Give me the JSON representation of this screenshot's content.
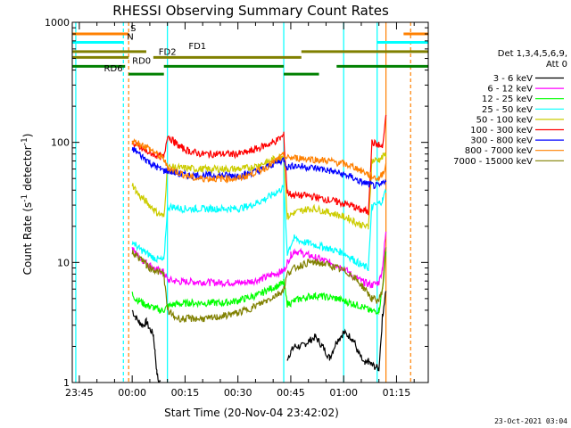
{
  "chart_data": {
    "type": "line",
    "title": "RHESSI Observing Summary Count Rates",
    "xlabel": "Start Time (20-Nov-04 23:42:02)",
    "ylabel_main": "Count Rate (s",
    "ylabel_sup1": "-1",
    "ylabel_mid": " detector",
    "ylabel_sup2": "-1",
    "ylabel_end": ")",
    "y_scale": "log",
    "ylim": [
      1,
      1000
    ],
    "xlim": [
      -17,
      84
    ],
    "x_units": "minutes after 00:00 on 21-Nov-04",
    "y_ticks": [
      {
        "value": 1,
        "label": "1"
      },
      {
        "value": 10,
        "label": "10"
      },
      {
        "value": 100,
        "label": "100"
      },
      {
        "value": 1000,
        "label": "1000"
      }
    ],
    "x_ticks": [
      {
        "value": -15,
        "label": "23:45"
      },
      {
        "value": 0,
        "label": "00:00"
      },
      {
        "value": 15,
        "label": "00:15"
      },
      {
        "value": 30,
        "label": "00:30"
      },
      {
        "value": 45,
        "label": "00:45"
      },
      {
        "value": 60,
        "label": "01:00"
      },
      {
        "value": 75,
        "label": "01:15"
      }
    ],
    "legend_header": [
      "Det 1,3,4,5,6,9,",
      "Att 0"
    ],
    "legend_placement": "right",
    "series": [
      {
        "name": "3 - 6 keV",
        "color": "#000000",
        "x": [
          0,
          1,
          2,
          3,
          4,
          5,
          6,
          6.5,
          7,
          7.5,
          8,
          9,
          10,
          12,
          14,
          16,
          18,
          20,
          22,
          24,
          26,
          28,
          30,
          32,
          34,
          36,
          38,
          40,
          42,
          43,
          43.5,
          44,
          45,
          46,
          48,
          50,
          52,
          54,
          56,
          58,
          60,
          62,
          63,
          64,
          65,
          66,
          67,
          68,
          70,
          71,
          72
        ],
        "y": [
          4.0,
          3.5,
          3.2,
          3.0,
          3.2,
          2.8,
          2.5,
          1.8,
          1.2,
          1.0,
          1.0,
          null,
          null,
          null,
          null,
          null,
          null,
          null,
          null,
          null,
          null,
          null,
          null,
          null,
          null,
          null,
          null,
          null,
          null,
          null,
          null,
          1.6,
          1.8,
          2.0,
          2.0,
          2.2,
          2.4,
          2.0,
          1.6,
          2.2,
          2.6,
          2.4,
          2.2,
          1.8,
          1.6,
          1.4,
          1.5,
          1.4,
          1.3,
          3.5,
          6
        ]
      },
      {
        "name": "6 - 12 keV",
        "color": "#ff00ff",
        "x": [
          0,
          1,
          2,
          3,
          4,
          5,
          6,
          7,
          8,
          9,
          10,
          12,
          14,
          16,
          18,
          20,
          22,
          24,
          26,
          28,
          30,
          32,
          34,
          36,
          38,
          40,
          42,
          43,
          44,
          45,
          46,
          48,
          50,
          52,
          54,
          56,
          58,
          60,
          62,
          63,
          64,
          65,
          66,
          67,
          68,
          70,
          71,
          72
        ],
        "y": [
          13,
          12,
          11,
          10.5,
          10,
          9.5,
          9,
          8.7,
          8.5,
          8.3,
          7.2,
          7.0,
          6.9,
          6.9,
          6.9,
          6.9,
          6.8,
          6.8,
          6.8,
          6.8,
          6.8,
          6.8,
          7.0,
          7.2,
          7.5,
          8.0,
          8.3,
          8.5,
          10.0,
          11.5,
          12.5,
          12.0,
          11.5,
          11.0,
          10.5,
          10.0,
          9.5,
          9.0,
          8.0,
          7.5,
          7.3,
          7.0,
          6.8,
          6.6,
          6.5,
          6.8,
          9,
          18
        ]
      },
      {
        "name": "12 - 25 keV",
        "color": "#00ff00",
        "x": [
          0,
          1,
          2,
          3,
          4,
          5,
          6,
          7,
          8,
          9,
          10,
          12,
          14,
          16,
          18,
          20,
          22,
          24,
          26,
          28,
          30,
          32,
          34,
          36,
          38,
          40,
          42,
          43,
          44,
          45,
          46,
          48,
          50,
          52,
          54,
          56,
          58,
          60,
          62,
          63,
          64,
          65,
          66,
          67,
          68,
          70,
          71,
          72
        ],
        "y": [
          5.5,
          5.0,
          4.8,
          4.6,
          4.4,
          4.3,
          4.2,
          4.1,
          4.0,
          4.0,
          4.3,
          4.5,
          4.5,
          4.6,
          4.6,
          4.6,
          4.6,
          4.6,
          4.6,
          4.7,
          4.8,
          5.0,
          5.2,
          5.4,
          5.8,
          6.2,
          6.5,
          6.8,
          4.5,
          4.6,
          4.8,
          5.0,
          5.2,
          5.3,
          5.2,
          5.1,
          5.0,
          4.8,
          4.6,
          4.5,
          4.4,
          4.3,
          4.2,
          4.0,
          3.9,
          4.0,
          6,
          12
        ]
      },
      {
        "name": "25 - 50 keV",
        "color": "#00ffff",
        "x": [
          0,
          1,
          2,
          3,
          4,
          5,
          6,
          7,
          8,
          9,
          10,
          12,
          14,
          16,
          18,
          20,
          22,
          24,
          26,
          28,
          30,
          32,
          34,
          36,
          38,
          40,
          42,
          43,
          44,
          45,
          46,
          48,
          50,
          52,
          54,
          56,
          58,
          60,
          62,
          63,
          64,
          65,
          66,
          67,
          68,
          70,
          71,
          72
        ],
        "y": [
          15,
          14,
          13,
          12.5,
          12,
          11.5,
          11,
          10.7,
          10.5,
          10.3,
          29,
          29,
          28,
          28,
          28,
          28,
          28,
          28,
          28,
          28,
          28,
          29,
          30,
          32,
          34,
          37,
          40,
          42,
          12,
          14,
          16,
          15,
          14.5,
          14,
          13.5,
          13,
          12.5,
          12,
          11,
          10.5,
          10,
          9.5,
          9.2,
          9.0,
          29,
          31,
          33,
          40
        ]
      },
      {
        "name": "50 - 100 keV",
        "color": "#cccc00",
        "x": [
          0,
          1,
          2,
          3,
          4,
          5,
          6,
          7,
          8,
          9,
          10,
          12,
          14,
          16,
          18,
          20,
          22,
          24,
          26,
          28,
          30,
          32,
          34,
          36,
          38,
          40,
          42,
          43,
          44,
          45,
          46,
          48,
          50,
          52,
          54,
          56,
          58,
          60,
          62,
          63,
          64,
          65,
          66,
          67,
          68,
          70,
          71,
          72
        ],
        "y": [
          45,
          40,
          36,
          34,
          32,
          30,
          28,
          26,
          25,
          24,
          62,
          62,
          61,
          61,
          60,
          60,
          60,
          60,
          60,
          60,
          60,
          61,
          62,
          65,
          68,
          72,
          76,
          78,
          24,
          25,
          26,
          27,
          28,
          28,
          27,
          26,
          25,
          24,
          23,
          22,
          21,
          20.5,
          20,
          19.5,
          70,
          72,
          75,
          80
        ]
      },
      {
        "name": "100 - 300 keV",
        "color": "#ff0000",
        "x": [
          0,
          1,
          2,
          3,
          4,
          5,
          6,
          7,
          8,
          9,
          10,
          12,
          14,
          16,
          18,
          20,
          22,
          24,
          26,
          28,
          30,
          32,
          34,
          36,
          38,
          40,
          42,
          43,
          44,
          45,
          46,
          48,
          50,
          52,
          54,
          56,
          58,
          60,
          62,
          63,
          64,
          65,
          66,
          67,
          68,
          70,
          71,
          72
        ],
        "y": [
          100,
          95,
          90,
          87,
          84,
          82,
          80,
          78,
          76,
          75,
          115,
          100,
          90,
          85,
          82,
          80,
          80,
          80,
          80,
          80,
          80,
          82,
          85,
          90,
          95,
          100,
          108,
          115,
          38,
          37,
          36,
          36,
          36,
          35,
          34,
          33,
          32,
          31,
          30,
          29,
          28,
          27,
          27,
          26,
          100,
          95,
          90,
          160
        ]
      },
      {
        "name": "300 - 800 keV",
        "color": "#0000ff",
        "x": [
          0,
          1,
          2,
          3,
          4,
          5,
          6,
          7,
          8,
          9,
          10,
          12,
          14,
          16,
          18,
          20,
          22,
          24,
          26,
          28,
          30,
          32,
          34,
          36,
          38,
          40,
          42,
          43,
          44,
          45,
          46,
          48,
          50,
          52,
          54,
          56,
          58,
          60,
          62,
          63,
          64,
          65,
          66,
          67,
          68,
          70,
          71,
          72
        ],
        "y": [
          88,
          85,
          80,
          76,
          72,
          68,
          65,
          62,
          60,
          58,
          58,
          56,
          54,
          53,
          53,
          53,
          53,
          53,
          53,
          53,
          53,
          54,
          56,
          58,
          62,
          66,
          70,
          72,
          62,
          63,
          64,
          63,
          62,
          61,
          60,
          58,
          56,
          54,
          52,
          50,
          48,
          47,
          46,
          45,
          44,
          43,
          45,
          50
        ]
      },
      {
        "name": "800 - 7000 keV",
        "color": "#ff8000",
        "x": [
          0,
          1,
          2,
          3,
          4,
          5,
          6,
          7,
          8,
          9,
          10,
          12,
          14,
          16,
          18,
          20,
          22,
          24,
          26,
          28,
          30,
          32,
          34,
          36,
          38,
          40,
          42,
          43,
          44,
          45,
          46,
          48,
          50,
          52,
          54,
          56,
          58,
          60,
          62,
          63,
          64,
          65,
          66,
          67,
          68,
          70,
          71,
          72
        ],
        "y": [
          100,
          100,
          98,
          95,
          92,
          88,
          84,
          80,
          76,
          72,
          62,
          58,
          55,
          52,
          50,
          50,
          50,
          50,
          50,
          50,
          50,
          52,
          55,
          58,
          62,
          68,
          74,
          78,
          74,
          74,
          74,
          74,
          73,
          72,
          71,
          70,
          68,
          66,
          64,
          62,
          60,
          58,
          56,
          54,
          52,
          50,
          55,
          65
        ]
      },
      {
        "name": "7000 - 15000 keV",
        "color": "#808000",
        "x": [
          0,
          1,
          2,
          3,
          4,
          5,
          6,
          7,
          8,
          9,
          10,
          12,
          14,
          16,
          18,
          20,
          22,
          24,
          26,
          28,
          30,
          32,
          34,
          36,
          38,
          40,
          42,
          43,
          44,
          45,
          46,
          48,
          50,
          52,
          54,
          56,
          58,
          60,
          62,
          63,
          64,
          65,
          66,
          67,
          68,
          70,
          71,
          72
        ],
        "y": [
          12,
          11.5,
          11,
          10.5,
          9.5,
          9.0,
          8.8,
          8.5,
          8.2,
          8.0,
          4.0,
          3.5,
          3.4,
          3.4,
          3.4,
          3.4,
          3.4,
          3.5,
          3.6,
          3.7,
          3.8,
          4.0,
          4.2,
          4.5,
          4.8,
          5.2,
          5.6,
          6.0,
          8,
          8.5,
          9,
          9.5,
          10,
          10,
          9.8,
          9.5,
          9.0,
          8.5,
          8.0,
          7.5,
          7.0,
          6.5,
          6.0,
          5.5,
          5.0,
          4.8,
          6,
          14
        ]
      }
    ],
    "flags": [
      {
        "label": "S",
        "color": "#ff8000",
        "level": 800,
        "segments": [
          [
            -17,
            -1
          ],
          [
            77,
            84
          ]
        ],
        "label_x": -0.5
      },
      {
        "label": "N",
        "color": "#00ffff",
        "level": 680,
        "segments": [
          [
            -17,
            -2.5
          ],
          [
            69.5,
            84
          ]
        ],
        "label_x": -1.5
      },
      {
        "label": "FD1",
        "color": "#808000",
        "level": 570,
        "segments": [
          [
            -17,
            4
          ],
          [
            48,
            84
          ]
        ],
        "label_x": 16
      },
      {
        "label": "FD2",
        "color": "#808000",
        "level": 510,
        "segments": [
          [
            -17,
            -1
          ],
          [
            6,
            48
          ]
        ],
        "label_x": 7.5
      },
      {
        "label": "RD0",
        "color": "#008000",
        "level": 430,
        "segments": [
          [
            -17,
            -2
          ],
          [
            9,
            43
          ],
          [
            58,
            84
          ]
        ],
        "label_x": 0
      },
      {
        "label": "RD6",
        "color": "#008000",
        "level": 370,
        "segments": [
          [
            -1,
            9
          ],
          [
            43,
            53
          ]
        ],
        "label_x": -8
      }
    ],
    "vlines": [
      {
        "x": -16,
        "color": "#00ffff",
        "style": "solid"
      },
      {
        "x": -2.5,
        "color": "#00ffff",
        "style": "dashed"
      },
      {
        "x": -1,
        "color": "#ff8000",
        "style": "dashed"
      },
      {
        "x": 10,
        "color": "#00ffff",
        "style": "solid"
      },
      {
        "x": 43,
        "color": "#00ffff",
        "style": "solid"
      },
      {
        "x": 60,
        "color": "#00ffff",
        "style": "solid"
      },
      {
        "x": 69.5,
        "color": "#00ffff",
        "style": "solid"
      },
      {
        "x": 72,
        "color": "#ff8000",
        "style": "solid"
      },
      {
        "x": 79,
        "color": "#ff8000",
        "style": "dashed"
      }
    ],
    "footer": "23-Oct-2021 03:04"
  }
}
